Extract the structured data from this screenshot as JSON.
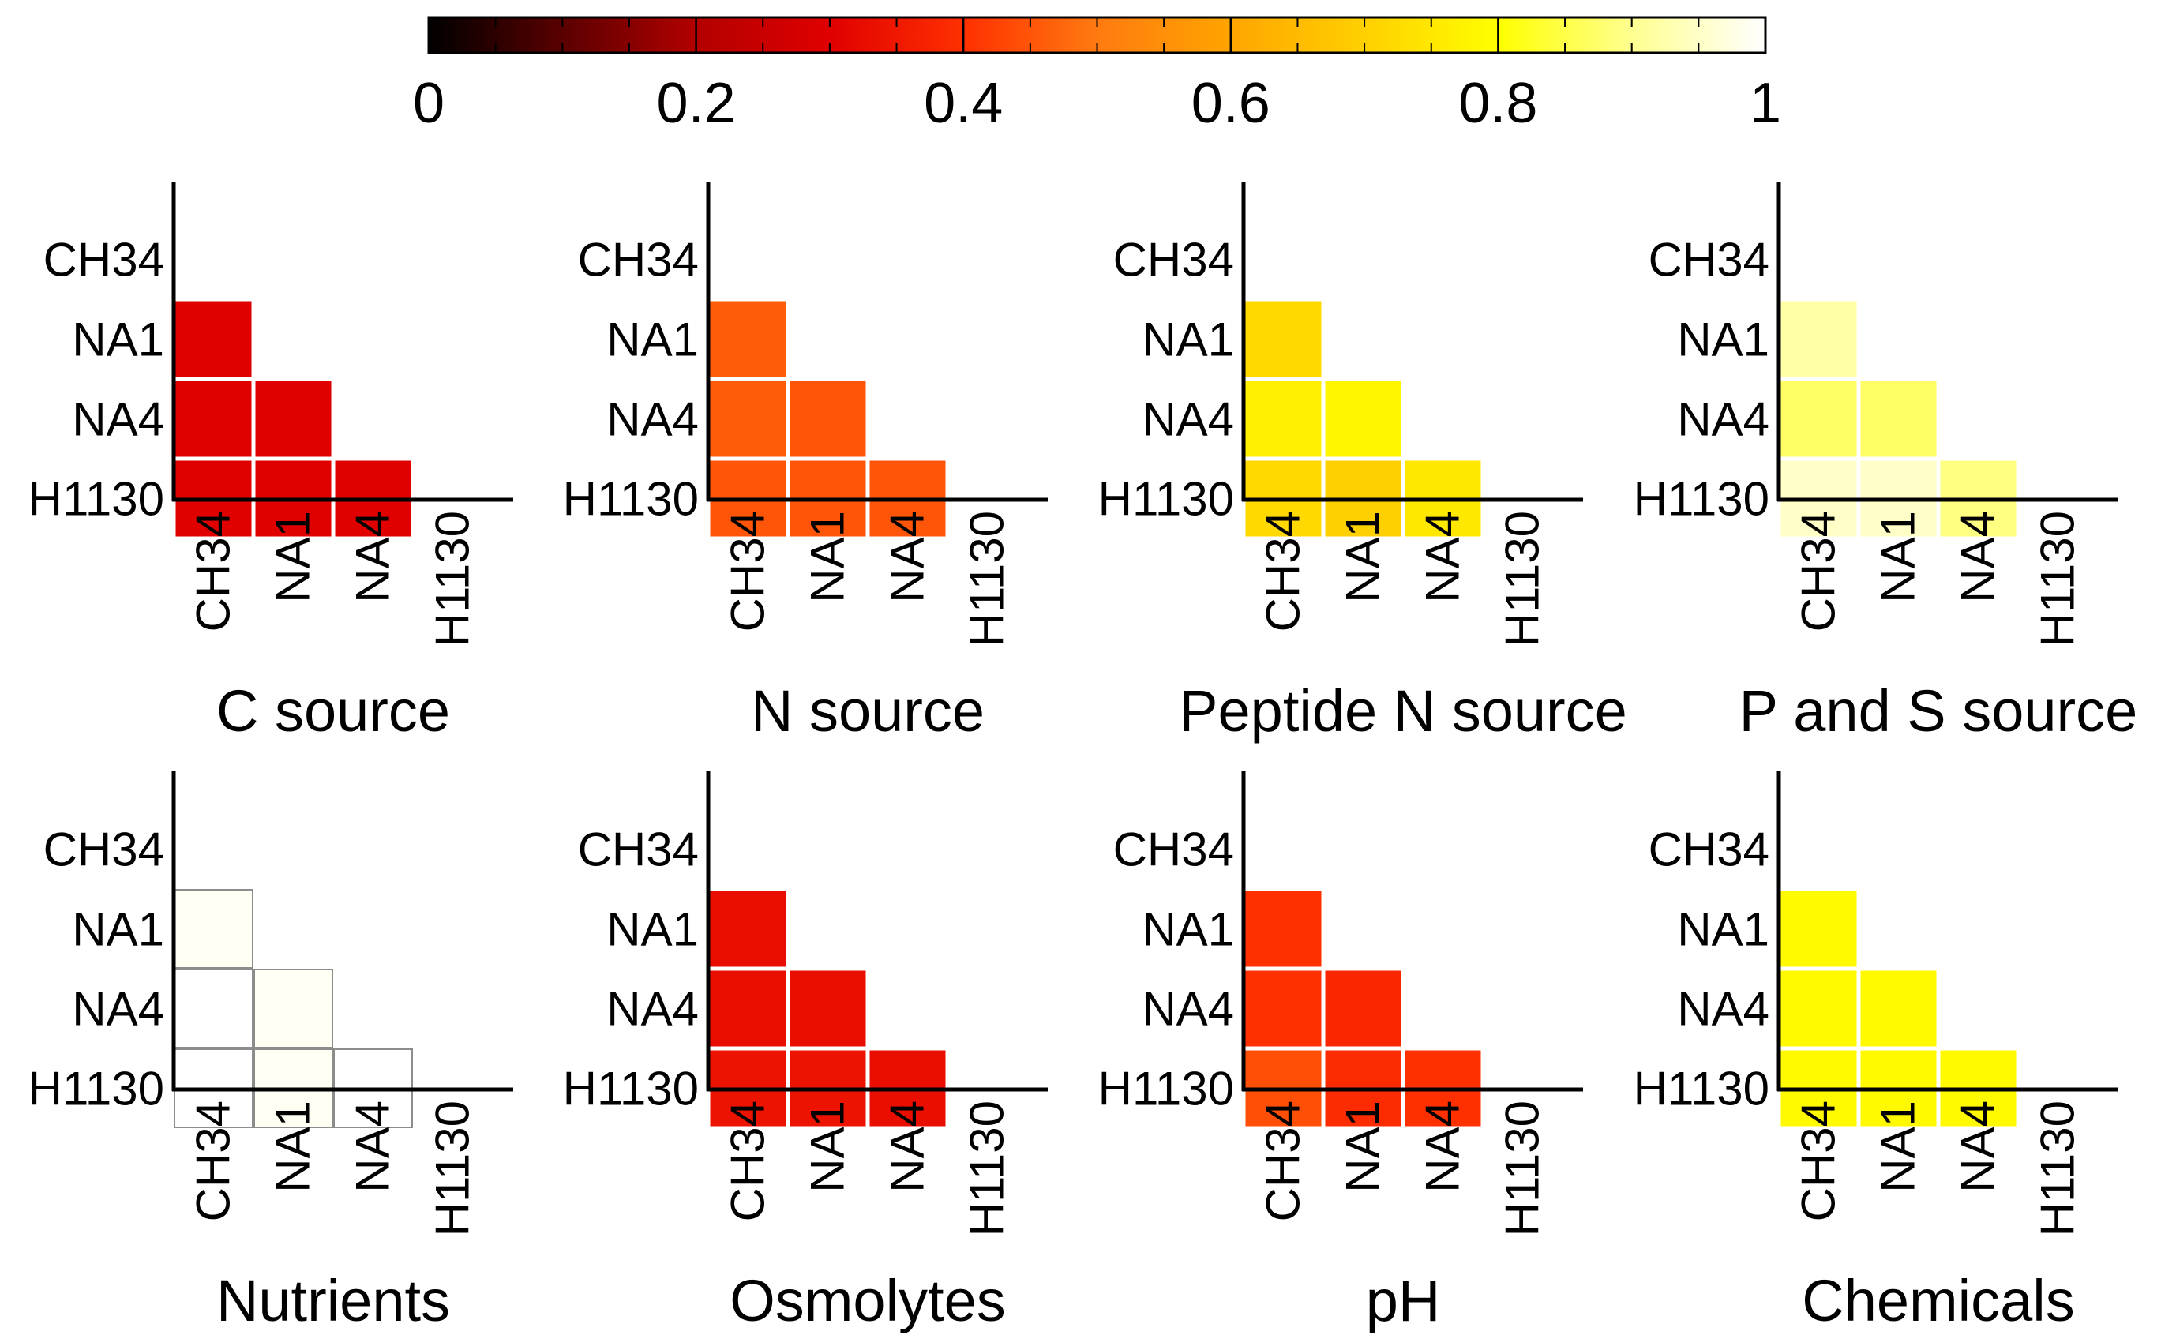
{
  "chart_data": {
    "type": "heatmap",
    "colorbar": {
      "min": 0,
      "max": 1,
      "tick_labels": [
        "0",
        "0.2",
        "0.4",
        "0.6",
        "0.8",
        "1"
      ],
      "tick_values": [
        0,
        0.2,
        0.4,
        0.6,
        0.8,
        1
      ],
      "colormap": "hot",
      "colormap_stops": [
        {
          "v": 0.0,
          "color": "#000000"
        },
        {
          "v": 0.2,
          "color": "#b30000"
        },
        {
          "v": 0.3,
          "color": "#e00000"
        },
        {
          "v": 0.4,
          "color": "#ff3000"
        },
        {
          "v": 0.5,
          "color": "#ff7a10"
        },
        {
          "v": 0.6,
          "color": "#ffa500"
        },
        {
          "v": 0.7,
          "color": "#ffd000"
        },
        {
          "v": 0.8,
          "color": "#ffff00"
        },
        {
          "v": 0.9,
          "color": "#ffff90"
        },
        {
          "v": 1.0,
          "color": "#ffffff"
        }
      ]
    },
    "row_labels": [
      "CH34",
      "NA1",
      "NA4",
      "H1130"
    ],
    "col_labels": [
      "CH34",
      "NA1",
      "NA4",
      "H1130"
    ],
    "panels": [
      {
        "title": "C source",
        "cells": [
          {
            "row": "NA1",
            "col": "CH34",
            "value": 0.3
          },
          {
            "row": "NA4",
            "col": "CH34",
            "value": 0.3
          },
          {
            "row": "NA4",
            "col": "NA1",
            "value": 0.3
          },
          {
            "row": "H1130",
            "col": "CH34",
            "value": 0.3
          },
          {
            "row": "H1130",
            "col": "NA1",
            "value": 0.3
          },
          {
            "row": "H1130",
            "col": "NA4",
            "value": 0.3
          }
        ]
      },
      {
        "title": "N source",
        "cells": [
          {
            "row": "NA1",
            "col": "CH34",
            "value": 0.46
          },
          {
            "row": "NA4",
            "col": "CH34",
            "value": 0.46
          },
          {
            "row": "NA4",
            "col": "NA1",
            "value": 0.45
          },
          {
            "row": "H1130",
            "col": "CH34",
            "value": 0.45
          },
          {
            "row": "H1130",
            "col": "NA1",
            "value": 0.45
          },
          {
            "row": "H1130",
            "col": "NA4",
            "value": 0.45
          }
        ]
      },
      {
        "title": "Peptide N source",
        "cells": [
          {
            "row": "NA1",
            "col": "CH34",
            "value": 0.72
          },
          {
            "row": "NA4",
            "col": "CH34",
            "value": 0.77
          },
          {
            "row": "NA4",
            "col": "NA1",
            "value": 0.78
          },
          {
            "row": "H1130",
            "col": "CH34",
            "value": 0.72
          },
          {
            "row": "H1130",
            "col": "NA1",
            "value": 0.7
          },
          {
            "row": "H1130",
            "col": "NA4",
            "value": 0.75
          }
        ]
      },
      {
        "title": "P and S source",
        "cells": [
          {
            "row": "NA1",
            "col": "CH34",
            "value": 0.92
          },
          {
            "row": "NA4",
            "col": "CH34",
            "value": 0.87
          },
          {
            "row": "NA4",
            "col": "NA1",
            "value": 0.87
          },
          {
            "row": "H1130",
            "col": "CH34",
            "value": 0.95
          },
          {
            "row": "H1130",
            "col": "NA1",
            "value": 0.95
          },
          {
            "row": "H1130",
            "col": "NA4",
            "value": 0.89
          }
        ]
      },
      {
        "title": "Nutrients",
        "cells": [
          {
            "row": "NA1",
            "col": "CH34",
            "value": 0.99
          },
          {
            "row": "NA4",
            "col": "CH34",
            "value": 1.0
          },
          {
            "row": "NA4",
            "col": "NA1",
            "value": 0.99
          },
          {
            "row": "H1130",
            "col": "CH34",
            "value": 1.0
          },
          {
            "row": "H1130",
            "col": "NA1",
            "value": 0.99
          },
          {
            "row": "H1130",
            "col": "NA4",
            "value": 1.0
          }
        ]
      },
      {
        "title": "Osmolytes",
        "cells": [
          {
            "row": "NA1",
            "col": "CH34",
            "value": 0.33
          },
          {
            "row": "NA4",
            "col": "CH34",
            "value": 0.33
          },
          {
            "row": "NA4",
            "col": "NA1",
            "value": 0.33
          },
          {
            "row": "H1130",
            "col": "CH34",
            "value": 0.34
          },
          {
            "row": "H1130",
            "col": "NA1",
            "value": 0.34
          },
          {
            "row": "H1130",
            "col": "NA4",
            "value": 0.33
          }
        ]
      },
      {
        "title": "pH",
        "cells": [
          {
            "row": "NA1",
            "col": "CH34",
            "value": 0.4
          },
          {
            "row": "NA4",
            "col": "CH34",
            "value": 0.4
          },
          {
            "row": "NA4",
            "col": "NA1",
            "value": 0.38
          },
          {
            "row": "H1130",
            "col": "CH34",
            "value": 0.44
          },
          {
            "row": "H1130",
            "col": "NA1",
            "value": 0.39
          },
          {
            "row": "H1130",
            "col": "NA4",
            "value": 0.4
          }
        ]
      },
      {
        "title": "Chemicals",
        "cells": [
          {
            "row": "NA1",
            "col": "CH34",
            "value": 0.79
          },
          {
            "row": "NA4",
            "col": "CH34",
            "value": 0.79
          },
          {
            "row": "NA4",
            "col": "NA1",
            "value": 0.79
          },
          {
            "row": "H1130",
            "col": "CH34",
            "value": 0.79
          },
          {
            "row": "H1130",
            "col": "NA1",
            "value": 0.79
          },
          {
            "row": "H1130",
            "col": "NA4",
            "value": 0.79
          }
        ]
      }
    ]
  }
}
